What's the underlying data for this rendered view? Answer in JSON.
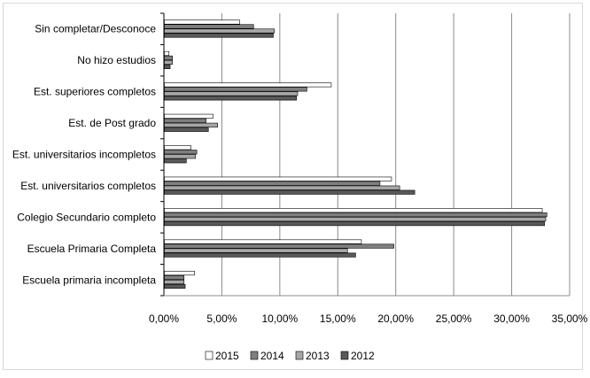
{
  "chart_data": {
    "type": "bar",
    "orientation": "horizontal",
    "categories": [
      "Sin completar/Desconoce",
      "No hizo estudios",
      "Est. superiores completos",
      "Est. de Post grado",
      "Est. universitarios incompletos",
      "Est. universitarios completos",
      "Colegio Secundario completo",
      "Escuela Primaria Completa",
      "Escuela primaria incompleta"
    ],
    "series": [
      {
        "name": "2015",
        "color": "#ffffff",
        "values": [
          6.5,
          0.4,
          14.4,
          4.2,
          2.3,
          19.6,
          32.6,
          17.0,
          2.6
        ]
      },
      {
        "name": "2014",
        "color": "#7f7f7f",
        "values": [
          7.7,
          0.7,
          12.3,
          3.6,
          2.8,
          18.6,
          33.0,
          19.8,
          1.7
        ]
      },
      {
        "name": "2013",
        "color": "#a6a6a6",
        "values": [
          9.5,
          0.7,
          11.5,
          4.6,
          2.7,
          20.3,
          32.9,
          15.8,
          1.7
        ]
      },
      {
        "name": "2012",
        "color": "#595959",
        "values": [
          9.4,
          0.5,
          11.4,
          3.8,
          1.9,
          21.6,
          32.8,
          16.5,
          1.8
        ]
      }
    ],
    "x_ticks": [
      "0,00%",
      "5,00%",
      "10,00%",
      "15,00%",
      "20,00%",
      "25,00%",
      "30,00%",
      "35,00%"
    ],
    "xlim": [
      0,
      35
    ],
    "grid": "vertical",
    "legend_position": "bottom",
    "title": "",
    "xlabel": "",
    "ylabel": ""
  }
}
